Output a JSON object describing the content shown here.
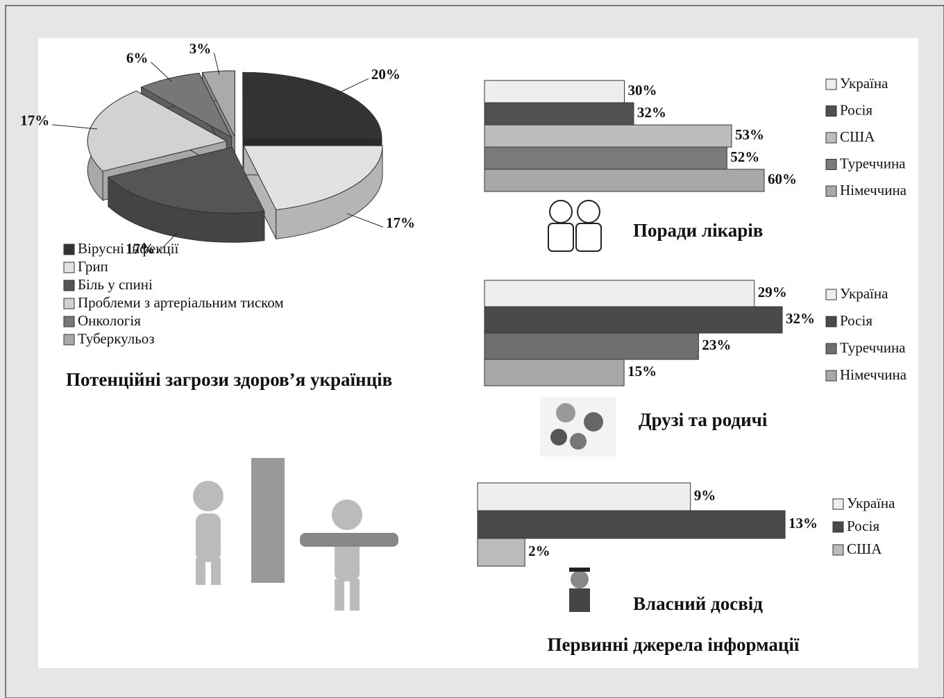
{
  "title": "Первинні джерела інформації",
  "chart_data": [
    {
      "type": "pie",
      "title": "Потенційні загрози здоров’я українців",
      "categories": [
        "Вірусні інфекції",
        "Грип",
        "Біль у спині",
        "Проблеми з артеріальним тиском",
        "Онкологія",
        "Туберкульоз"
      ],
      "values": [
        20,
        17,
        17,
        17,
        6,
        3
      ],
      "value_labels": [
        "20%",
        "17%",
        "17%",
        "17%",
        "6%",
        "3%"
      ],
      "colors": [
        "#333333",
        "#e2e2e2",
        "#555555",
        "#d2d2d2",
        "#777777",
        "#aaaaaa"
      ]
    },
    {
      "type": "bar",
      "orientation": "horizontal",
      "title": "Поради лікарів",
      "categories": [
        "Україна",
        "Росія",
        "США",
        "Туреччина",
        "Німеччина"
      ],
      "values": [
        30,
        32,
        53,
        52,
        60
      ],
      "value_labels": [
        "30%",
        "32%",
        "53%",
        "52%",
        "60%"
      ],
      "colors": [
        "#eeeeee",
        "#505050",
        "#bdbdbd",
        "#7a7a7a",
        "#a8a8a8"
      ]
    },
    {
      "type": "bar",
      "orientation": "horizontal",
      "title": "Друзі та родичі",
      "categories": [
        "Україна",
        "Росія",
        "Туреччина",
        "Німеччина"
      ],
      "values": [
        29,
        32,
        23,
        15
      ],
      "value_labels": [
        "29%",
        "32%",
        "23%",
        "15%"
      ],
      "colors": [
        "#eeeeee",
        "#4a4a4a",
        "#6e6e6e",
        "#a8a8a8"
      ]
    },
    {
      "type": "bar",
      "orientation": "horizontal",
      "title": "Власний досвід",
      "categories": [
        "Україна",
        "Росія",
        "США"
      ],
      "values": [
        9,
        13,
        2
      ],
      "value_labels": [
        "9%",
        "13%",
        "2%"
      ],
      "colors": [
        "#eeeeee",
        "#4a4a4a",
        "#bbbbbb"
      ]
    }
  ]
}
